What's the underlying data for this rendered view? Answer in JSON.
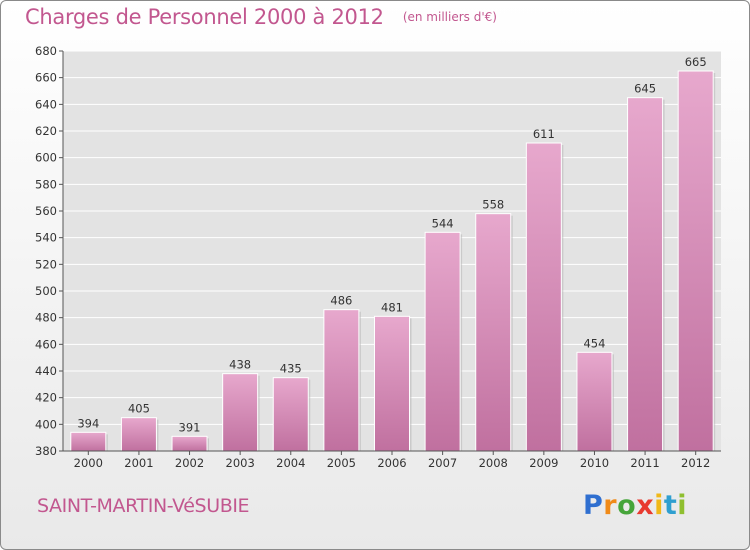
{
  "header": {
    "title": "Charges de Personnel 2000 à 2012",
    "unit": "(en milliers d'€)"
  },
  "footer": {
    "commune": "SAINT-MARTIN-VéSUBIE",
    "brand_letters": [
      {
        "char": "P",
        "color": "#2f6fd0"
      },
      {
        "char": "r",
        "color": "#f08a18"
      },
      {
        "char": "o",
        "color": "#46a53a"
      },
      {
        "char": "x",
        "color": "#e83a2f"
      },
      {
        "char": "i",
        "color": "#f0b818"
      },
      {
        "char": "t",
        "color": "#2f9fd0"
      },
      {
        "char": "i",
        "color": "#8fbf2f"
      }
    ]
  },
  "chart_data": {
    "type": "bar",
    "title": "Charges de Personnel 2000 à 2012",
    "subtitle": "(en milliers d'€)",
    "xlabel": "",
    "ylabel": "",
    "categories": [
      "2000",
      "2001",
      "2002",
      "2003",
      "2004",
      "2005",
      "2006",
      "2007",
      "2008",
      "2009",
      "2010",
      "2011",
      "2012"
    ],
    "values": [
      394,
      405,
      391,
      438,
      435,
      486,
      481,
      544,
      558,
      611,
      454,
      645,
      665
    ],
    "ylim": [
      380,
      680
    ],
    "yticks": [
      380,
      400,
      420,
      440,
      460,
      480,
      500,
      520,
      540,
      560,
      580,
      600,
      620,
      640,
      660,
      680
    ],
    "grid": true,
    "bar_color": "#c0709f",
    "bar_color_light": "#e7a8cd",
    "plot_background": "#e3e3e3",
    "accent_color": "#c2578f"
  }
}
